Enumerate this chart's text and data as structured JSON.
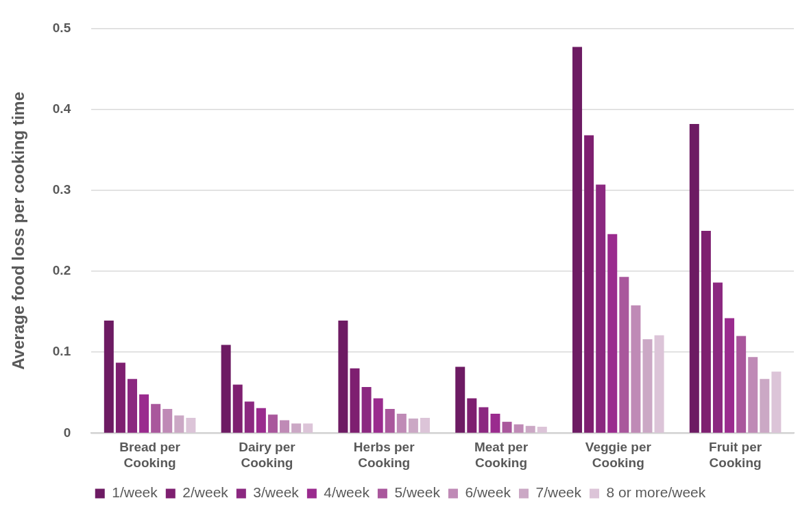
{
  "chart_data": {
    "type": "bar",
    "ylabel": "Average food loss per cooking time",
    "categories": [
      "Bread per Cooking",
      "Dairy per Cooking",
      "Herbs per Cooking",
      "Meat per Cooking",
      "Veggie per Cooking",
      "Fruit per Cooking"
    ],
    "series": [
      {
        "name": "1/week",
        "color": "#6d1b63",
        "values": [
          0.139,
          0.109,
          0.139,
          0.082,
          0.477,
          0.382
        ]
      },
      {
        "name": "2/week",
        "color": "#7e1f70",
        "values": [
          0.087,
          0.06,
          0.08,
          0.043,
          0.368,
          0.25
        ]
      },
      {
        "name": "3/week",
        "color": "#8b2880",
        "values": [
          0.067,
          0.039,
          0.057,
          0.032,
          0.307,
          0.186
        ]
      },
      {
        "name": "4/week",
        "color": "#9a2b8e",
        "values": [
          0.048,
          0.031,
          0.043,
          0.024,
          0.246,
          0.142
        ]
      },
      {
        "name": "5/week",
        "color": "#a9579c",
        "values": [
          0.036,
          0.023,
          0.03,
          0.014,
          0.193,
          0.12
        ]
      },
      {
        "name": "6/week",
        "color": "#bf8ab6",
        "values": [
          0.03,
          0.016,
          0.024,
          0.011,
          0.158,
          0.094
        ]
      },
      {
        "name": "7/week",
        "color": "#cba8c5",
        "values": [
          0.022,
          0.012,
          0.018,
          0.009,
          0.116,
          0.067
        ]
      },
      {
        "name": "8 or more/week",
        "color": "#dcc4d8",
        "values": [
          0.019,
          0.012,
          0.019,
          0.008,
          0.121,
          0.076
        ]
      }
    ],
    "ylim": [
      0,
      0.5
    ],
    "yticks": [
      0,
      0.1,
      0.2,
      0.3,
      0.4,
      0.5
    ],
    "grid": "y",
    "legend": "bottom"
  }
}
